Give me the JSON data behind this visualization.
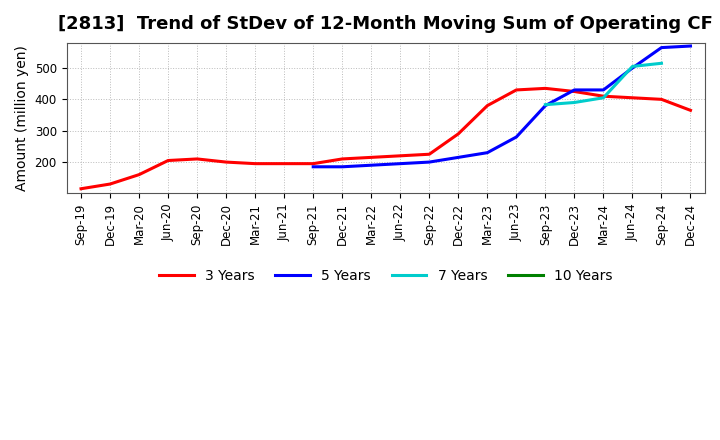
{
  "title": "[2813]  Trend of StDev of 12-Month Moving Sum of Operating CF",
  "ylabel": "Amount (million yen)",
  "background_color": "#ffffff",
  "plot_bg_color": "#ffffff",
  "grid_color": "#aaaaaa",
  "title_fontsize": 13,
  "label_fontsize": 10,
  "tick_fontsize": 8.5,
  "x_labels": [
    "Sep-19",
    "Dec-19",
    "Mar-20",
    "Jun-20",
    "Sep-20",
    "Dec-20",
    "Mar-21",
    "Jun-21",
    "Sep-21",
    "Dec-21",
    "Mar-22",
    "Jun-22",
    "Sep-22",
    "Dec-22",
    "Mar-23",
    "Jun-23",
    "Sep-23",
    "Dec-23",
    "Mar-24",
    "Jun-24",
    "Sep-24",
    "Dec-24"
  ],
  "series_3y": {
    "label": "3 Years",
    "color": "#ff0000",
    "linewidth": 2.2,
    "data_x": [
      0,
      1,
      2,
      3,
      4,
      5,
      6,
      7,
      8,
      9,
      10,
      11,
      12,
      13,
      14,
      15,
      16,
      17,
      18,
      19,
      20,
      21
    ],
    "data_y": [
      115,
      130,
      160,
      205,
      210,
      200,
      195,
      195,
      195,
      210,
      215,
      220,
      225,
      290,
      380,
      430,
      435,
      425,
      410,
      405,
      400,
      365
    ]
  },
  "series_5y": {
    "label": "5 Years",
    "color": "#0000ff",
    "linewidth": 2.2,
    "data_x": [
      8,
      9,
      10,
      11,
      12,
      13,
      14,
      15,
      16,
      17,
      18,
      19,
      20,
      21
    ],
    "data_y": [
      185,
      185,
      190,
      195,
      200,
      215,
      230,
      280,
      380,
      430,
      430,
      500,
      565,
      570
    ]
  },
  "series_7y": {
    "label": "7 Years",
    "color": "#00cccc",
    "linewidth": 2.2,
    "data_x": [
      16,
      17,
      18,
      19,
      20
    ],
    "data_y": [
      383,
      390,
      405,
      505,
      515
    ]
  },
  "series_10y": {
    "label": "10 Years",
    "color": "#008000",
    "linewidth": 2.2,
    "data_x": [],
    "data_y": []
  },
  "ylim": [
    100,
    580
  ],
  "yticks": [
    200,
    300,
    400,
    500
  ],
  "legend_ncol": 4
}
